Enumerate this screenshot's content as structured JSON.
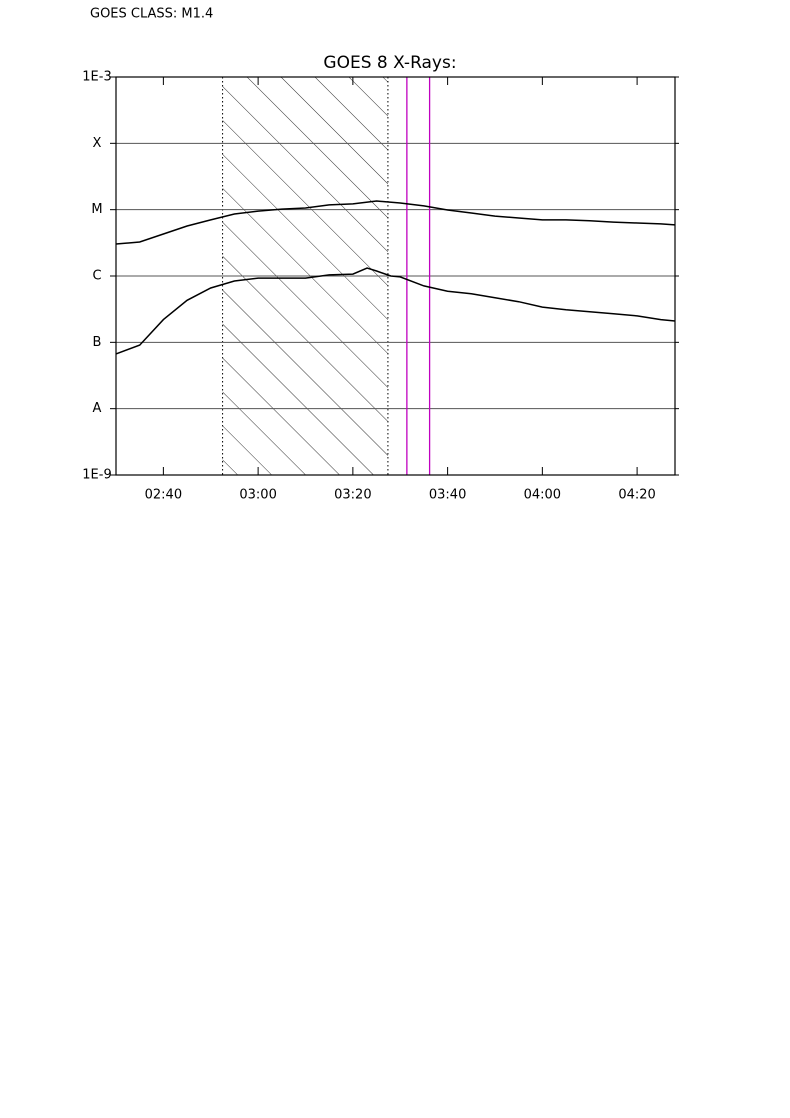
{
  "chart_data": {
    "type": "line",
    "header": "GOES CLASS: M1.4",
    "title": "GOES 8 X-Rays:",
    "log_y": true,
    "grid": true,
    "xlim": [
      150,
      268
    ],
    "xticks": [
      {
        "value": 160,
        "label": "02:40"
      },
      {
        "value": 180,
        "label": "03:00"
      },
      {
        "value": 200,
        "label": "03:20"
      },
      {
        "value": 220,
        "label": "03:40"
      },
      {
        "value": 240,
        "label": "04:00"
      },
      {
        "value": 260,
        "label": "04:20"
      }
    ],
    "ylim": [
      1e-09,
      0.001
    ],
    "yticks": [
      {
        "value": 1e-09,
        "label": "1E-9"
      },
      {
        "value": 1e-08,
        "label": "A"
      },
      {
        "value": 1e-07,
        "label": "B"
      },
      {
        "value": 1e-06,
        "label": "C"
      },
      {
        "value": 1e-05,
        "label": "M"
      },
      {
        "value": 0.0001,
        "label": "X"
      },
      {
        "value": 0.001,
        "label": "1E-3"
      }
    ],
    "shaded_region": [
      172.5,
      207.4
    ],
    "markers": [
      211.4,
      216.2
    ],
    "marker_color": "#c000c0",
    "series": [
      {
        "color": "#000000",
        "x": [
          150,
          155,
          160,
          165,
          170,
          175,
          180,
          185,
          190,
          195,
          200,
          205,
          210,
          215,
          220,
          225,
          230,
          235,
          240,
          245,
          250,
          255,
          260,
          265,
          268
        ],
        "values": [
          3.04e-06,
          3.26e-06,
          4.3e-06,
          5.68e-06,
          7e-06,
          8.6e-06,
          9.5e-06,
          1.02e-05,
          1.06e-05,
          1.18e-05,
          1.22e-05,
          1.35e-05,
          1.26e-05,
          1.14e-05,
          9.9e-06,
          8.9e-06,
          8e-06,
          7.5e-06,
          7e-06,
          7e-06,
          6.8e-06,
          6.5e-06,
          6.3e-06,
          6.1e-06,
          5.9e-06
        ]
      },
      {
        "color": "#000000",
        "x": [
          150,
          155,
          160,
          165,
          170,
          175,
          180,
          185,
          190,
          195,
          200,
          203,
          205,
          208,
          210,
          215,
          220,
          225,
          230,
          235,
          240,
          245,
          250,
          255,
          260,
          265,
          268
        ],
        "values": [
          6.7e-08,
          9.1e-08,
          2.2e-07,
          4.3e-07,
          6.6e-07,
          8.4e-07,
          9.3e-07,
          9.3e-07,
          9.3e-07,
          1.04e-06,
          1.07e-06,
          1.32e-06,
          1.19e-06,
          1e-06,
          9.7e-07,
          7.1e-07,
          5.9e-07,
          5.4e-07,
          4.7e-07,
          4.1e-07,
          3.4e-07,
          3.1e-07,
          2.9e-07,
          2.7e-07,
          2.5e-07,
          2.2e-07,
          2.1e-07
        ]
      }
    ]
  }
}
